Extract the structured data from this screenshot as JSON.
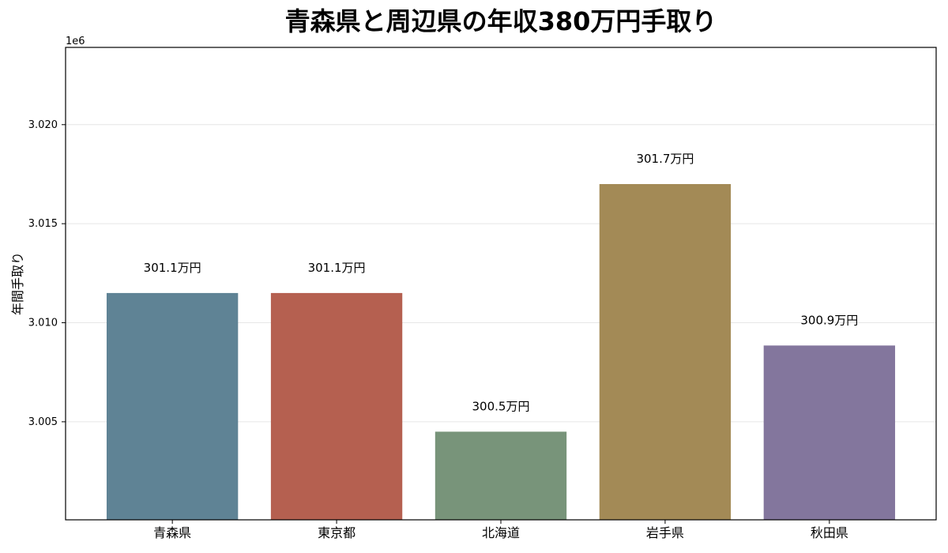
{
  "chart_data": {
    "type": "bar",
    "title": "青森県と周辺県の年収380万円手取り",
    "xlabel": "",
    "ylabel": "年間手取り",
    "axis_offset_label": "1e6",
    "categories": [
      "青森県",
      "東京都",
      "北海道",
      "岩手県",
      "秋田県"
    ],
    "values": [
      3011500,
      3011500,
      3004500,
      3017000,
      3008850
    ],
    "data_labels": [
      "301.1万円",
      "301.1万円",
      "300.5万円",
      "301.7万円",
      "300.9万円"
    ],
    "colors": [
      "#5f8395",
      "#b56050",
      "#78947a",
      "#a38a56",
      "#83769d"
    ],
    "ylim": [
      3000050,
      3023900
    ],
    "yticks": [
      3005000,
      3010000,
      3015000,
      3020000
    ],
    "ytick_labels": [
      "3.005",
      "3.010",
      "3.015",
      "3.020"
    ],
    "grid": true
  }
}
